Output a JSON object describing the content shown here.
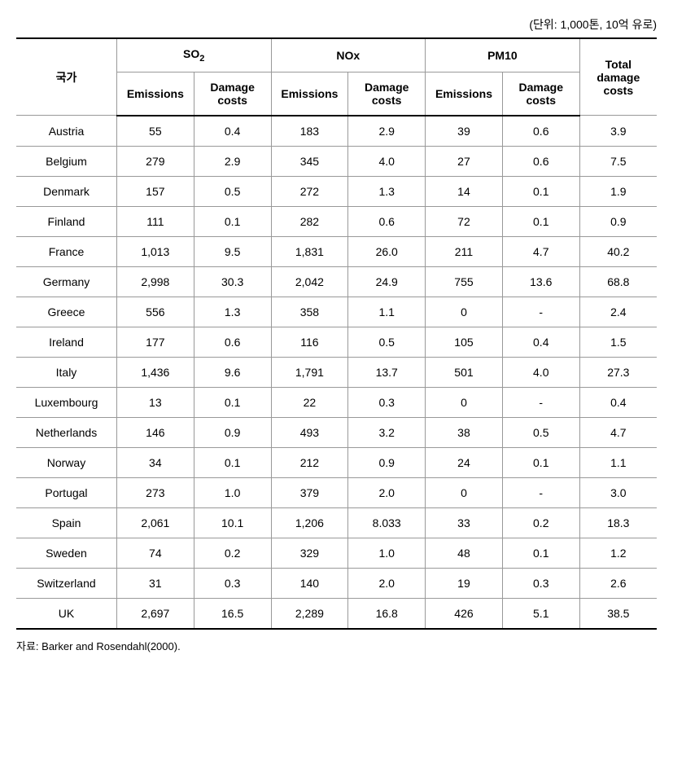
{
  "unit_label": "(단위: 1,000톤, 10억 유로)",
  "source_label": "자료: Barker and Rosendahl(2000).",
  "table": {
    "type": "table",
    "background_color": "#ffffff",
    "border_color": "#999999",
    "header_border_color": "#000000",
    "text_color": "#000000",
    "font_size": 14,
    "headers": {
      "country": "국가",
      "groups": [
        {
          "label": "SO",
          "sub": "2"
        },
        {
          "label": "NOx",
          "sub": ""
        },
        {
          "label": "PM10",
          "sub": ""
        }
      ],
      "sub_headers": {
        "emissions": "Emissions",
        "damage_costs": "Damage costs"
      },
      "total": "Total damage costs"
    },
    "columns": [
      "country",
      "so2_emissions",
      "so2_damage",
      "nox_emissions",
      "nox_damage",
      "pm10_emissions",
      "pm10_damage",
      "total_damage"
    ],
    "rows": [
      [
        "Austria",
        "55",
        "0.4",
        "183",
        "2.9",
        "39",
        "0.6",
        "3.9"
      ],
      [
        "Belgium",
        "279",
        "2.9",
        "345",
        "4.0",
        "27",
        "0.6",
        "7.5"
      ],
      [
        "Denmark",
        "157",
        "0.5",
        "272",
        "1.3",
        "14",
        "0.1",
        "1.9"
      ],
      [
        "Finland",
        "111",
        "0.1",
        "282",
        "0.6",
        "72",
        "0.1",
        "0.9"
      ],
      [
        "France",
        "1,013",
        "9.5",
        "1,831",
        "26.0",
        "211",
        "4.7",
        "40.2"
      ],
      [
        "Germany",
        "2,998",
        "30.3",
        "2,042",
        "24.9",
        "755",
        "13.6",
        "68.8"
      ],
      [
        "Greece",
        "556",
        "1.3",
        "358",
        "1.1",
        "0",
        "-",
        "2.4"
      ],
      [
        "Ireland",
        "177",
        "0.6",
        "116",
        "0.5",
        "105",
        "0.4",
        "1.5"
      ],
      [
        "Italy",
        "1,436",
        "9.6",
        "1,791",
        "13.7",
        "501",
        "4.0",
        "27.3"
      ],
      [
        "Luxembourg",
        "13",
        "0.1",
        "22",
        "0.3",
        "0",
        "-",
        "0.4"
      ],
      [
        "Netherlands",
        "146",
        "0.9",
        "493",
        "3.2",
        "38",
        "0.5",
        "4.7"
      ],
      [
        "Norway",
        "34",
        "0.1",
        "212",
        "0.9",
        "24",
        "0.1",
        "1.1"
      ],
      [
        "Portugal",
        "273",
        "1.0",
        "379",
        "2.0",
        "0",
        "-",
        "3.0"
      ],
      [
        "Spain",
        "2,061",
        "10.1",
        "1,206",
        "8.033",
        "33",
        "0.2",
        "18.3"
      ],
      [
        "Sweden",
        "74",
        "0.2",
        "329",
        "1.0",
        "48",
        "0.1",
        "1.2"
      ],
      [
        "Switzerland",
        "31",
        "0.3",
        "140",
        "2.0",
        "19",
        "0.3",
        "2.6"
      ],
      [
        "UK",
        "2,697",
        "16.5",
        "2,289",
        "16.8",
        "426",
        "5.1",
        "38.5"
      ]
    ]
  }
}
